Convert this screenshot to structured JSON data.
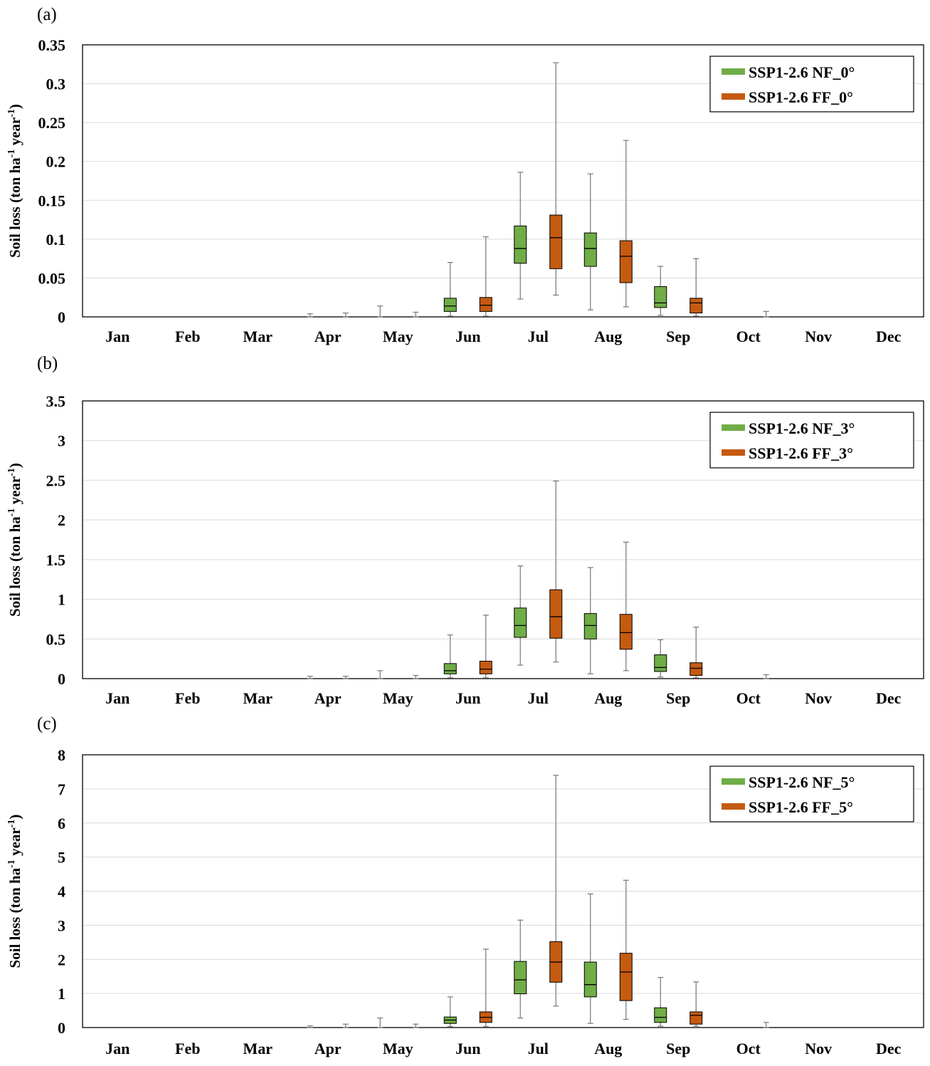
{
  "colors": {
    "nf": "#70ad47",
    "ff": "#c55a11",
    "grid": "#d9d9d9",
    "whisker": "#808080",
    "axis": "#000000"
  },
  "chart_data": [
    {
      "type": "box",
      "panel_label": "(a)",
      "ylabel": "Soil loss (ton ha",
      "ylabel_sup1": "-1",
      "ylabel_mid": " year",
      "ylabel_sup2": "-1",
      "ylabel_end": ")",
      "ylim": [
        0,
        0.35
      ],
      "yticks": [
        0,
        0.05,
        0.1,
        0.15,
        0.2,
        0.25,
        0.3,
        0.35
      ],
      "ytick_labels": [
        "0",
        "0.05",
        "0.1",
        "0.15",
        "0.2",
        "0.25",
        "0.3",
        "0.35"
      ],
      "categories": [
        "Jan",
        "Feb",
        "Mar",
        "Apr",
        "May",
        "Jun",
        "Jul",
        "Aug",
        "Sep",
        "Oct",
        "Nov",
        "Dec"
      ],
      "legend_position": "top-right",
      "grid": true,
      "series": [
        {
          "name": "SSP1-2.6 NF_0°",
          "color_key": "nf",
          "boxes": [
            [
              0,
              0,
              0,
              0,
              0
            ],
            [
              0,
              0,
              0,
              0,
              0
            ],
            [
              0,
              0,
              0,
              0,
              0
            ],
            [
              0,
              0,
              0,
              0,
              0.004
            ],
            [
              0,
              0,
              0,
              0,
              0.014
            ],
            [
              0.001,
              0.007,
              0.014,
              0.024,
              0.07
            ],
            [
              0.023,
              0.069,
              0.088,
              0.117,
              0.186
            ],
            [
              0.009,
              0.065,
              0.088,
              0.108,
              0.184
            ],
            [
              0.002,
              0.012,
              0.018,
              0.039,
              0.065
            ],
            [
              0,
              0,
              0,
              0,
              0
            ],
            [
              0,
              0,
              0,
              0,
              0
            ],
            [
              0,
              0,
              0,
              0,
              0
            ]
          ]
        },
        {
          "name": "SSP1-2.6 FF_0°",
          "color_key": "ff",
          "boxes": [
            [
              0,
              0,
              0,
              0,
              0
            ],
            [
              0,
              0,
              0,
              0,
              0
            ],
            [
              0,
              0,
              0,
              0,
              0
            ],
            [
              0,
              0,
              0,
              0,
              0.005
            ],
            [
              0,
              0,
              0,
              0,
              0.006
            ],
            [
              0.001,
              0.007,
              0.015,
              0.025,
              0.103
            ],
            [
              0.028,
              0.062,
              0.102,
              0.131,
              0.327
            ],
            [
              0.013,
              0.044,
              0.078,
              0.098,
              0.227
            ],
            [
              0.001,
              0.005,
              0.018,
              0.024,
              0.075
            ],
            [
              0,
              0,
              0,
              0,
              0.007
            ],
            [
              0,
              0,
              0,
              0,
              0
            ],
            [
              0,
              0,
              0,
              0,
              0
            ]
          ]
        }
      ]
    },
    {
      "type": "box",
      "panel_label": "(b)",
      "ylabel": "Soil loss (ton ha",
      "ylabel_sup1": "-1",
      "ylabel_mid": " year",
      "ylabel_sup2": "-1",
      "ylabel_end": ")",
      "ylim": [
        0,
        3.5
      ],
      "yticks": [
        0,
        0.5,
        1,
        1.5,
        2,
        2.5,
        3,
        3.5
      ],
      "ytick_labels": [
        "0",
        "0.5",
        "1",
        "1.5",
        "2",
        "2.5",
        "3",
        "3.5"
      ],
      "categories": [
        "Jan",
        "Feb",
        "Mar",
        "Apr",
        "May",
        "Jun",
        "Jul",
        "Aug",
        "Sep",
        "Oct",
        "Nov",
        "Dec"
      ],
      "legend_position": "top-right",
      "grid": true,
      "series": [
        {
          "name": "SSP1-2.6 NF_3°",
          "color_key": "nf",
          "boxes": [
            [
              0,
              0,
              0,
              0,
              0
            ],
            [
              0,
              0,
              0,
              0,
              0
            ],
            [
              0,
              0,
              0,
              0,
              0
            ],
            [
              0,
              0,
              0,
              0,
              0.03
            ],
            [
              0,
              0,
              0,
              0,
              0.1
            ],
            [
              0.01,
              0.06,
              0.1,
              0.19,
              0.55
            ],
            [
              0.17,
              0.52,
              0.67,
              0.89,
              1.42
            ],
            [
              0.06,
              0.5,
              0.67,
              0.82,
              1.4
            ],
            [
              0.02,
              0.09,
              0.14,
              0.3,
              0.49
            ],
            [
              0,
              0,
              0,
              0,
              0
            ],
            [
              0,
              0,
              0,
              0,
              0
            ],
            [
              0,
              0,
              0,
              0,
              0
            ]
          ]
        },
        {
          "name": "SSP1-2.6 FF_3°",
          "color_key": "ff",
          "boxes": [
            [
              0,
              0,
              0,
              0,
              0
            ],
            [
              0,
              0,
              0,
              0,
              0
            ],
            [
              0,
              0,
              0,
              0,
              0
            ],
            [
              0,
              0,
              0,
              0,
              0.03
            ],
            [
              0,
              0,
              0,
              0,
              0.04
            ],
            [
              0.01,
              0.06,
              0.12,
              0.22,
              0.8
            ],
            [
              0.21,
              0.51,
              0.78,
              1.12,
              2.49
            ],
            [
              0.1,
              0.37,
              0.58,
              0.81,
              1.72
            ],
            [
              0.01,
              0.04,
              0.13,
              0.2,
              0.65
            ],
            [
              0,
              0,
              0,
              0,
              0.05
            ],
            [
              0,
              0,
              0,
              0,
              0
            ],
            [
              0,
              0,
              0,
              0,
              0
            ]
          ]
        }
      ]
    },
    {
      "type": "box",
      "panel_label": "(c)",
      "ylabel": "Soil loss (ton ha",
      "ylabel_sup1": "-1",
      "ylabel_mid": " year",
      "ylabel_sup2": "-1",
      "ylabel_end": ")",
      "ylim": [
        0,
        8
      ],
      "yticks": [
        0,
        1,
        2,
        3,
        4,
        5,
        6,
        7,
        8
      ],
      "ytick_labels": [
        "0",
        "1",
        "2",
        "3",
        "4",
        "5",
        "6",
        "7",
        "8"
      ],
      "categories": [
        "Jan",
        "Feb",
        "Mar",
        "Apr",
        "May",
        "Jun",
        "Jul",
        "Aug",
        "Sep",
        "Oct",
        "Nov",
        "Dec"
      ],
      "legend_position": "top-right",
      "grid": true,
      "series": [
        {
          "name": "SSP1-2.6 NF_5°",
          "color_key": "nf",
          "boxes": [
            [
              0,
              0,
              0,
              0,
              0
            ],
            [
              0,
              0,
              0,
              0,
              0
            ],
            [
              0,
              0,
              0,
              0,
              0
            ],
            [
              0,
              0,
              0,
              0,
              0.05
            ],
            [
              0,
              0,
              0,
              0,
              0.28
            ],
            [
              0.03,
              0.12,
              0.22,
              0.31,
              0.9
            ],
            [
              0.28,
              0.99,
              1.4,
              1.94,
              3.15
            ],
            [
              0.12,
              0.9,
              1.26,
              1.92,
              3.92
            ],
            [
              0.04,
              0.15,
              0.3,
              0.58,
              1.47
            ],
            [
              0,
              0,
              0,
              0,
              0
            ],
            [
              0,
              0,
              0,
              0,
              0
            ],
            [
              0,
              0,
              0,
              0,
              0
            ]
          ]
        },
        {
          "name": "SSP1-2.6 FF_5°",
          "color_key": "ff",
          "boxes": [
            [
              0,
              0,
              0,
              0,
              0
            ],
            [
              0,
              0,
              0,
              0,
              0
            ],
            [
              0,
              0,
              0,
              0,
              0
            ],
            [
              0,
              0,
              0,
              0,
              0.1
            ],
            [
              0,
              0,
              0,
              0,
              0.1
            ],
            [
              0.03,
              0.15,
              0.3,
              0.46,
              2.3
            ],
            [
              0.63,
              1.33,
              1.92,
              2.52,
              7.4
            ],
            [
              0.24,
              0.79,
              1.63,
              2.18,
              4.32
            ],
            [
              0.04,
              0.1,
              0.36,
              0.46,
              1.34
            ],
            [
              0,
              0,
              0,
              0,
              0.15
            ],
            [
              0,
              0,
              0,
              0,
              0
            ],
            [
              0,
              0,
              0,
              0,
              0
            ]
          ]
        }
      ]
    }
  ]
}
